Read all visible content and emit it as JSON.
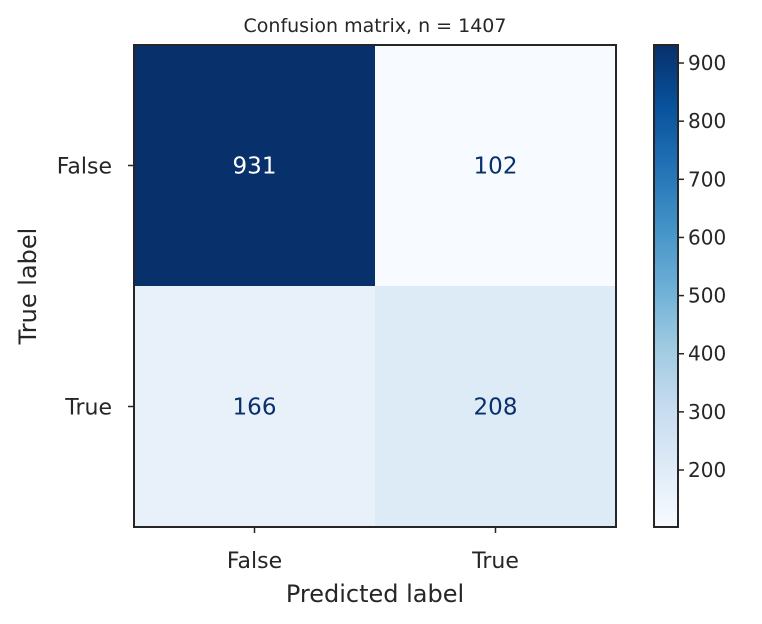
{
  "chart_data": {
    "type": "heatmap",
    "title": "Confusion matrix, n = 1407",
    "xlabel": "Predicted label",
    "ylabel": "True label",
    "x_categories": [
      "False",
      "True"
    ],
    "y_categories": [
      "False",
      "True"
    ],
    "values": [
      [
        931,
        102
      ],
      [
        166,
        208
      ]
    ],
    "colormap": "Blues",
    "colorbar": {
      "range": [
        102,
        931
      ],
      "ticks": [
        200,
        300,
        400,
        500,
        600,
        700,
        800,
        900
      ]
    },
    "colors": {
      "low": "#f7fbff",
      "high": "#08306b",
      "text_dark": "#08306b",
      "text_light": "#ffffff",
      "frame": "#262626"
    }
  }
}
